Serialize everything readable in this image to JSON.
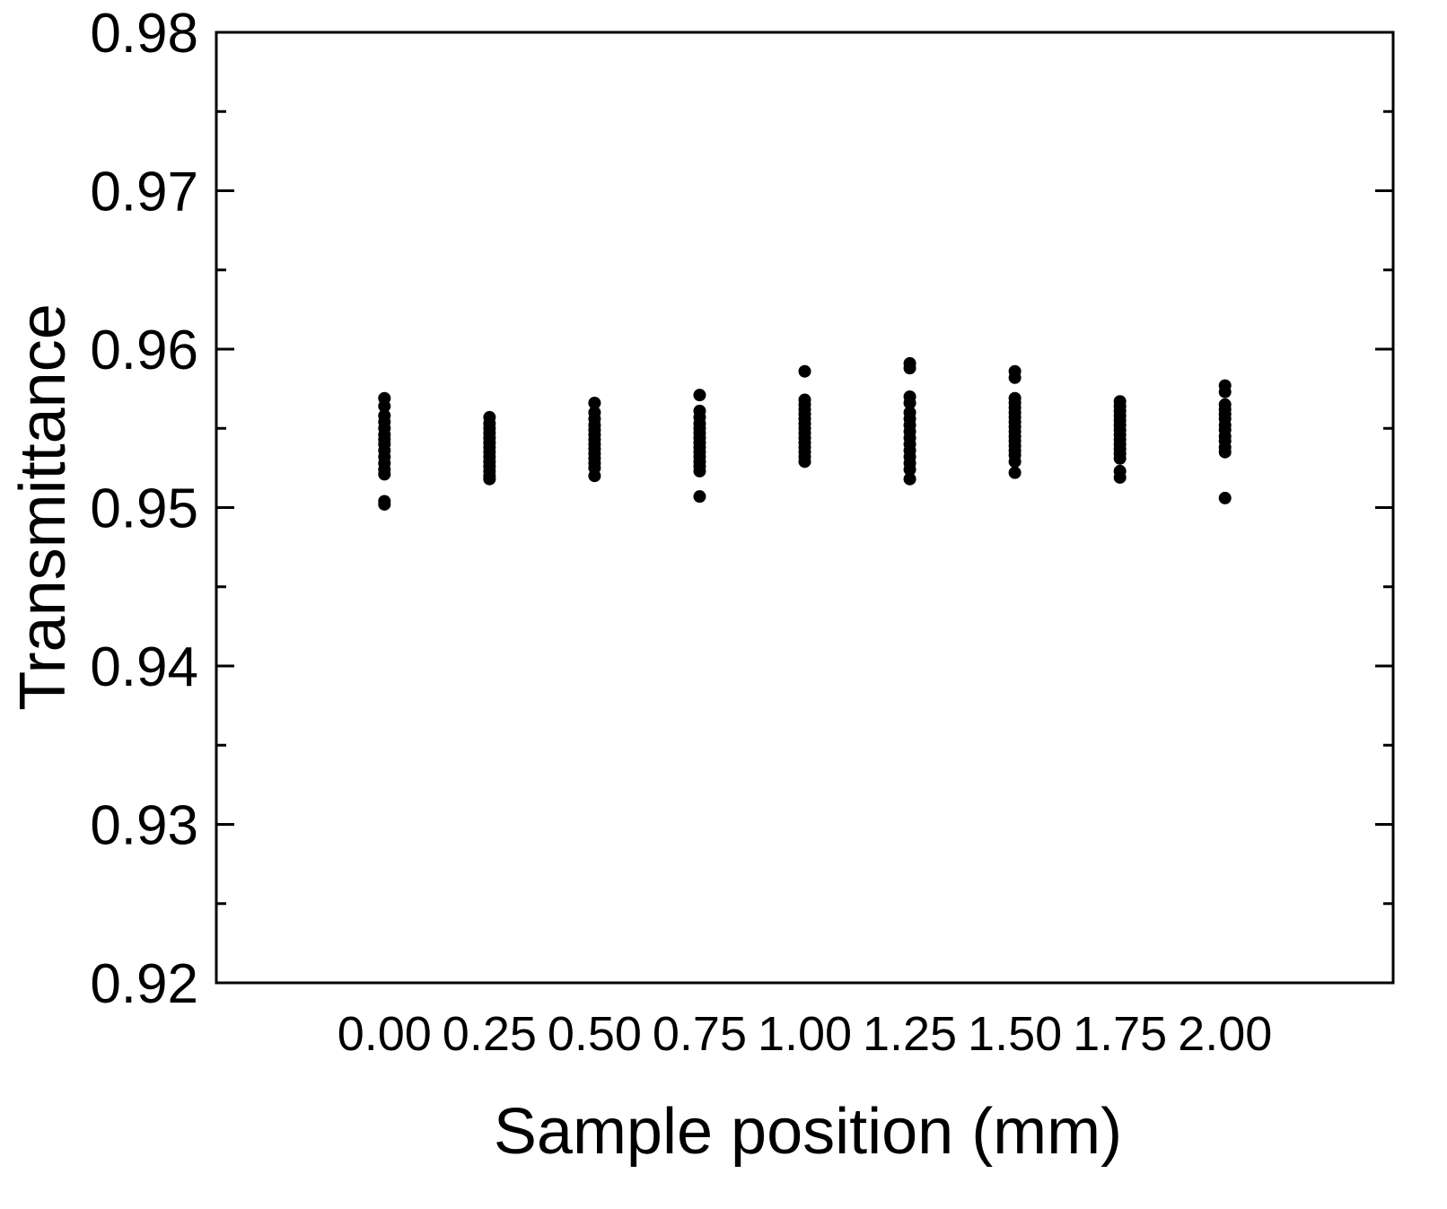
{
  "chart_data": {
    "type": "scatter",
    "title": "",
    "xlabel": "Sample position (mm)",
    "ylabel": "Transmittance",
    "xlim": [
      -0.4,
      2.4
    ],
    "ylim": [
      0.92,
      0.98
    ],
    "xticks": [
      "0.00",
      "0.25",
      "0.50",
      "0.75",
      "1.00",
      "1.25",
      "1.50",
      "1.75",
      "2.00"
    ],
    "yticks": [
      "0.92",
      "0.93",
      "0.94",
      "0.95",
      "0.96",
      "0.97",
      "0.98"
    ],
    "y_minor_ticks": true,
    "grid": false,
    "marker_color": "#000000",
    "series": [
      {
        "points": [
          {
            "x": 0.0,
            "y": 0.9569
          },
          {
            "x": 0.0,
            "y": 0.9564
          },
          {
            "x": 0.0,
            "y": 0.9558
          },
          {
            "x": 0.0,
            "y": 0.9554
          },
          {
            "x": 0.0,
            "y": 0.955
          },
          {
            "x": 0.0,
            "y": 0.9546
          },
          {
            "x": 0.0,
            "y": 0.9543
          },
          {
            "x": 0.0,
            "y": 0.954
          },
          {
            "x": 0.0,
            "y": 0.9536
          },
          {
            "x": 0.0,
            "y": 0.9532
          },
          {
            "x": 0.0,
            "y": 0.9528
          },
          {
            "x": 0.0,
            "y": 0.9524
          },
          {
            "x": 0.0,
            "y": 0.9521
          },
          {
            "x": 0.0,
            "y": 0.9504
          },
          {
            "x": 0.0,
            "y": 0.9502
          },
          {
            "x": 0.25,
            "y": 0.9557
          },
          {
            "x": 0.25,
            "y": 0.9553
          },
          {
            "x": 0.25,
            "y": 0.955
          },
          {
            "x": 0.25,
            "y": 0.9547
          },
          {
            "x": 0.25,
            "y": 0.9544
          },
          {
            "x": 0.25,
            "y": 0.9541
          },
          {
            "x": 0.25,
            "y": 0.9538
          },
          {
            "x": 0.25,
            "y": 0.9535
          },
          {
            "x": 0.25,
            "y": 0.9532
          },
          {
            "x": 0.25,
            "y": 0.9529
          },
          {
            "x": 0.25,
            "y": 0.9526
          },
          {
            "x": 0.25,
            "y": 0.9523
          },
          {
            "x": 0.25,
            "y": 0.952
          },
          {
            "x": 0.25,
            "y": 0.9518
          },
          {
            "x": 0.5,
            "y": 0.9566
          },
          {
            "x": 0.5,
            "y": 0.956
          },
          {
            "x": 0.5,
            "y": 0.9556
          },
          {
            "x": 0.5,
            "y": 0.9552
          },
          {
            "x": 0.5,
            "y": 0.9549
          },
          {
            "x": 0.5,
            "y": 0.9546
          },
          {
            "x": 0.5,
            "y": 0.9543
          },
          {
            "x": 0.5,
            "y": 0.954
          },
          {
            "x": 0.5,
            "y": 0.9537
          },
          {
            "x": 0.5,
            "y": 0.9534
          },
          {
            "x": 0.5,
            "y": 0.9531
          },
          {
            "x": 0.5,
            "y": 0.9528
          },
          {
            "x": 0.5,
            "y": 0.9525
          },
          {
            "x": 0.5,
            "y": 0.952
          },
          {
            "x": 0.75,
            "y": 0.9571
          },
          {
            "x": 0.75,
            "y": 0.9561
          },
          {
            "x": 0.75,
            "y": 0.9557
          },
          {
            "x": 0.75,
            "y": 0.9553
          },
          {
            "x": 0.75,
            "y": 0.955
          },
          {
            "x": 0.75,
            "y": 0.9547
          },
          {
            "x": 0.75,
            "y": 0.9544
          },
          {
            "x": 0.75,
            "y": 0.9541
          },
          {
            "x": 0.75,
            "y": 0.9538
          },
          {
            "x": 0.75,
            "y": 0.9535
          },
          {
            "x": 0.75,
            "y": 0.9532
          },
          {
            "x": 0.75,
            "y": 0.9529
          },
          {
            "x": 0.75,
            "y": 0.9526
          },
          {
            "x": 0.75,
            "y": 0.9523
          },
          {
            "x": 0.75,
            "y": 0.9507
          },
          {
            "x": 1.0,
            "y": 0.9586
          },
          {
            "x": 1.0,
            "y": 0.9568
          },
          {
            "x": 1.0,
            "y": 0.9565
          },
          {
            "x": 1.0,
            "y": 0.9562
          },
          {
            "x": 1.0,
            "y": 0.9559
          },
          {
            "x": 1.0,
            "y": 0.9556
          },
          {
            "x": 1.0,
            "y": 0.9553
          },
          {
            "x": 1.0,
            "y": 0.955
          },
          {
            "x": 1.0,
            "y": 0.9547
          },
          {
            "x": 1.0,
            "y": 0.9544
          },
          {
            "x": 1.0,
            "y": 0.9541
          },
          {
            "x": 1.0,
            "y": 0.9538
          },
          {
            "x": 1.0,
            "y": 0.9535
          },
          {
            "x": 1.0,
            "y": 0.9532
          },
          {
            "x": 1.0,
            "y": 0.9529
          },
          {
            "x": 1.25,
            "y": 0.9591
          },
          {
            "x": 1.25,
            "y": 0.9588
          },
          {
            "x": 1.25,
            "y": 0.957
          },
          {
            "x": 1.25,
            "y": 0.9566
          },
          {
            "x": 1.25,
            "y": 0.956
          },
          {
            "x": 1.25,
            "y": 0.9556
          },
          {
            "x": 1.25,
            "y": 0.9552
          },
          {
            "x": 1.25,
            "y": 0.9548
          },
          {
            "x": 1.25,
            "y": 0.9544
          },
          {
            "x": 1.25,
            "y": 0.954
          },
          {
            "x": 1.25,
            "y": 0.9536
          },
          {
            "x": 1.25,
            "y": 0.9532
          },
          {
            "x": 1.25,
            "y": 0.9528
          },
          {
            "x": 1.25,
            "y": 0.9524
          },
          {
            "x": 1.25,
            "y": 0.9518
          },
          {
            "x": 1.5,
            "y": 0.9586
          },
          {
            "x": 1.5,
            "y": 0.9582
          },
          {
            "x": 1.5,
            "y": 0.9569
          },
          {
            "x": 1.5,
            "y": 0.9566
          },
          {
            "x": 1.5,
            "y": 0.9563
          },
          {
            "x": 1.5,
            "y": 0.956
          },
          {
            "x": 1.5,
            "y": 0.9557
          },
          {
            "x": 1.5,
            "y": 0.9554
          },
          {
            "x": 1.5,
            "y": 0.9551
          },
          {
            "x": 1.5,
            "y": 0.9548
          },
          {
            "x": 1.5,
            "y": 0.9545
          },
          {
            "x": 1.5,
            "y": 0.9542
          },
          {
            "x": 1.5,
            "y": 0.9539
          },
          {
            "x": 1.5,
            "y": 0.9536
          },
          {
            "x": 1.5,
            "y": 0.9533
          },
          {
            "x": 1.5,
            "y": 0.9529
          },
          {
            "x": 1.5,
            "y": 0.9522
          },
          {
            "x": 1.75,
            "y": 0.9567
          },
          {
            "x": 1.75,
            "y": 0.9564
          },
          {
            "x": 1.75,
            "y": 0.9561
          },
          {
            "x": 1.75,
            "y": 0.9558
          },
          {
            "x": 1.75,
            "y": 0.9555
          },
          {
            "x": 1.75,
            "y": 0.9552
          },
          {
            "x": 1.75,
            "y": 0.9549
          },
          {
            "x": 1.75,
            "y": 0.9546
          },
          {
            "x": 1.75,
            "y": 0.9543
          },
          {
            "x": 1.75,
            "y": 0.954
          },
          {
            "x": 1.75,
            "y": 0.9537
          },
          {
            "x": 1.75,
            "y": 0.9534
          },
          {
            "x": 1.75,
            "y": 0.9531
          },
          {
            "x": 1.75,
            "y": 0.9523
          },
          {
            "x": 1.75,
            "y": 0.9519
          },
          {
            "x": 2.0,
            "y": 0.9577
          },
          {
            "x": 2.0,
            "y": 0.9573
          },
          {
            "x": 2.0,
            "y": 0.9565
          },
          {
            "x": 2.0,
            "y": 0.9562
          },
          {
            "x": 2.0,
            "y": 0.9559
          },
          {
            "x": 2.0,
            "y": 0.9556
          },
          {
            "x": 2.0,
            "y": 0.9552
          },
          {
            "x": 2.0,
            "y": 0.9549
          },
          {
            "x": 2.0,
            "y": 0.9545
          },
          {
            "x": 2.0,
            "y": 0.9542
          },
          {
            "x": 2.0,
            "y": 0.9538
          },
          {
            "x": 2.0,
            "y": 0.9535
          },
          {
            "x": 2.0,
            "y": 0.9506
          }
        ]
      }
    ]
  }
}
